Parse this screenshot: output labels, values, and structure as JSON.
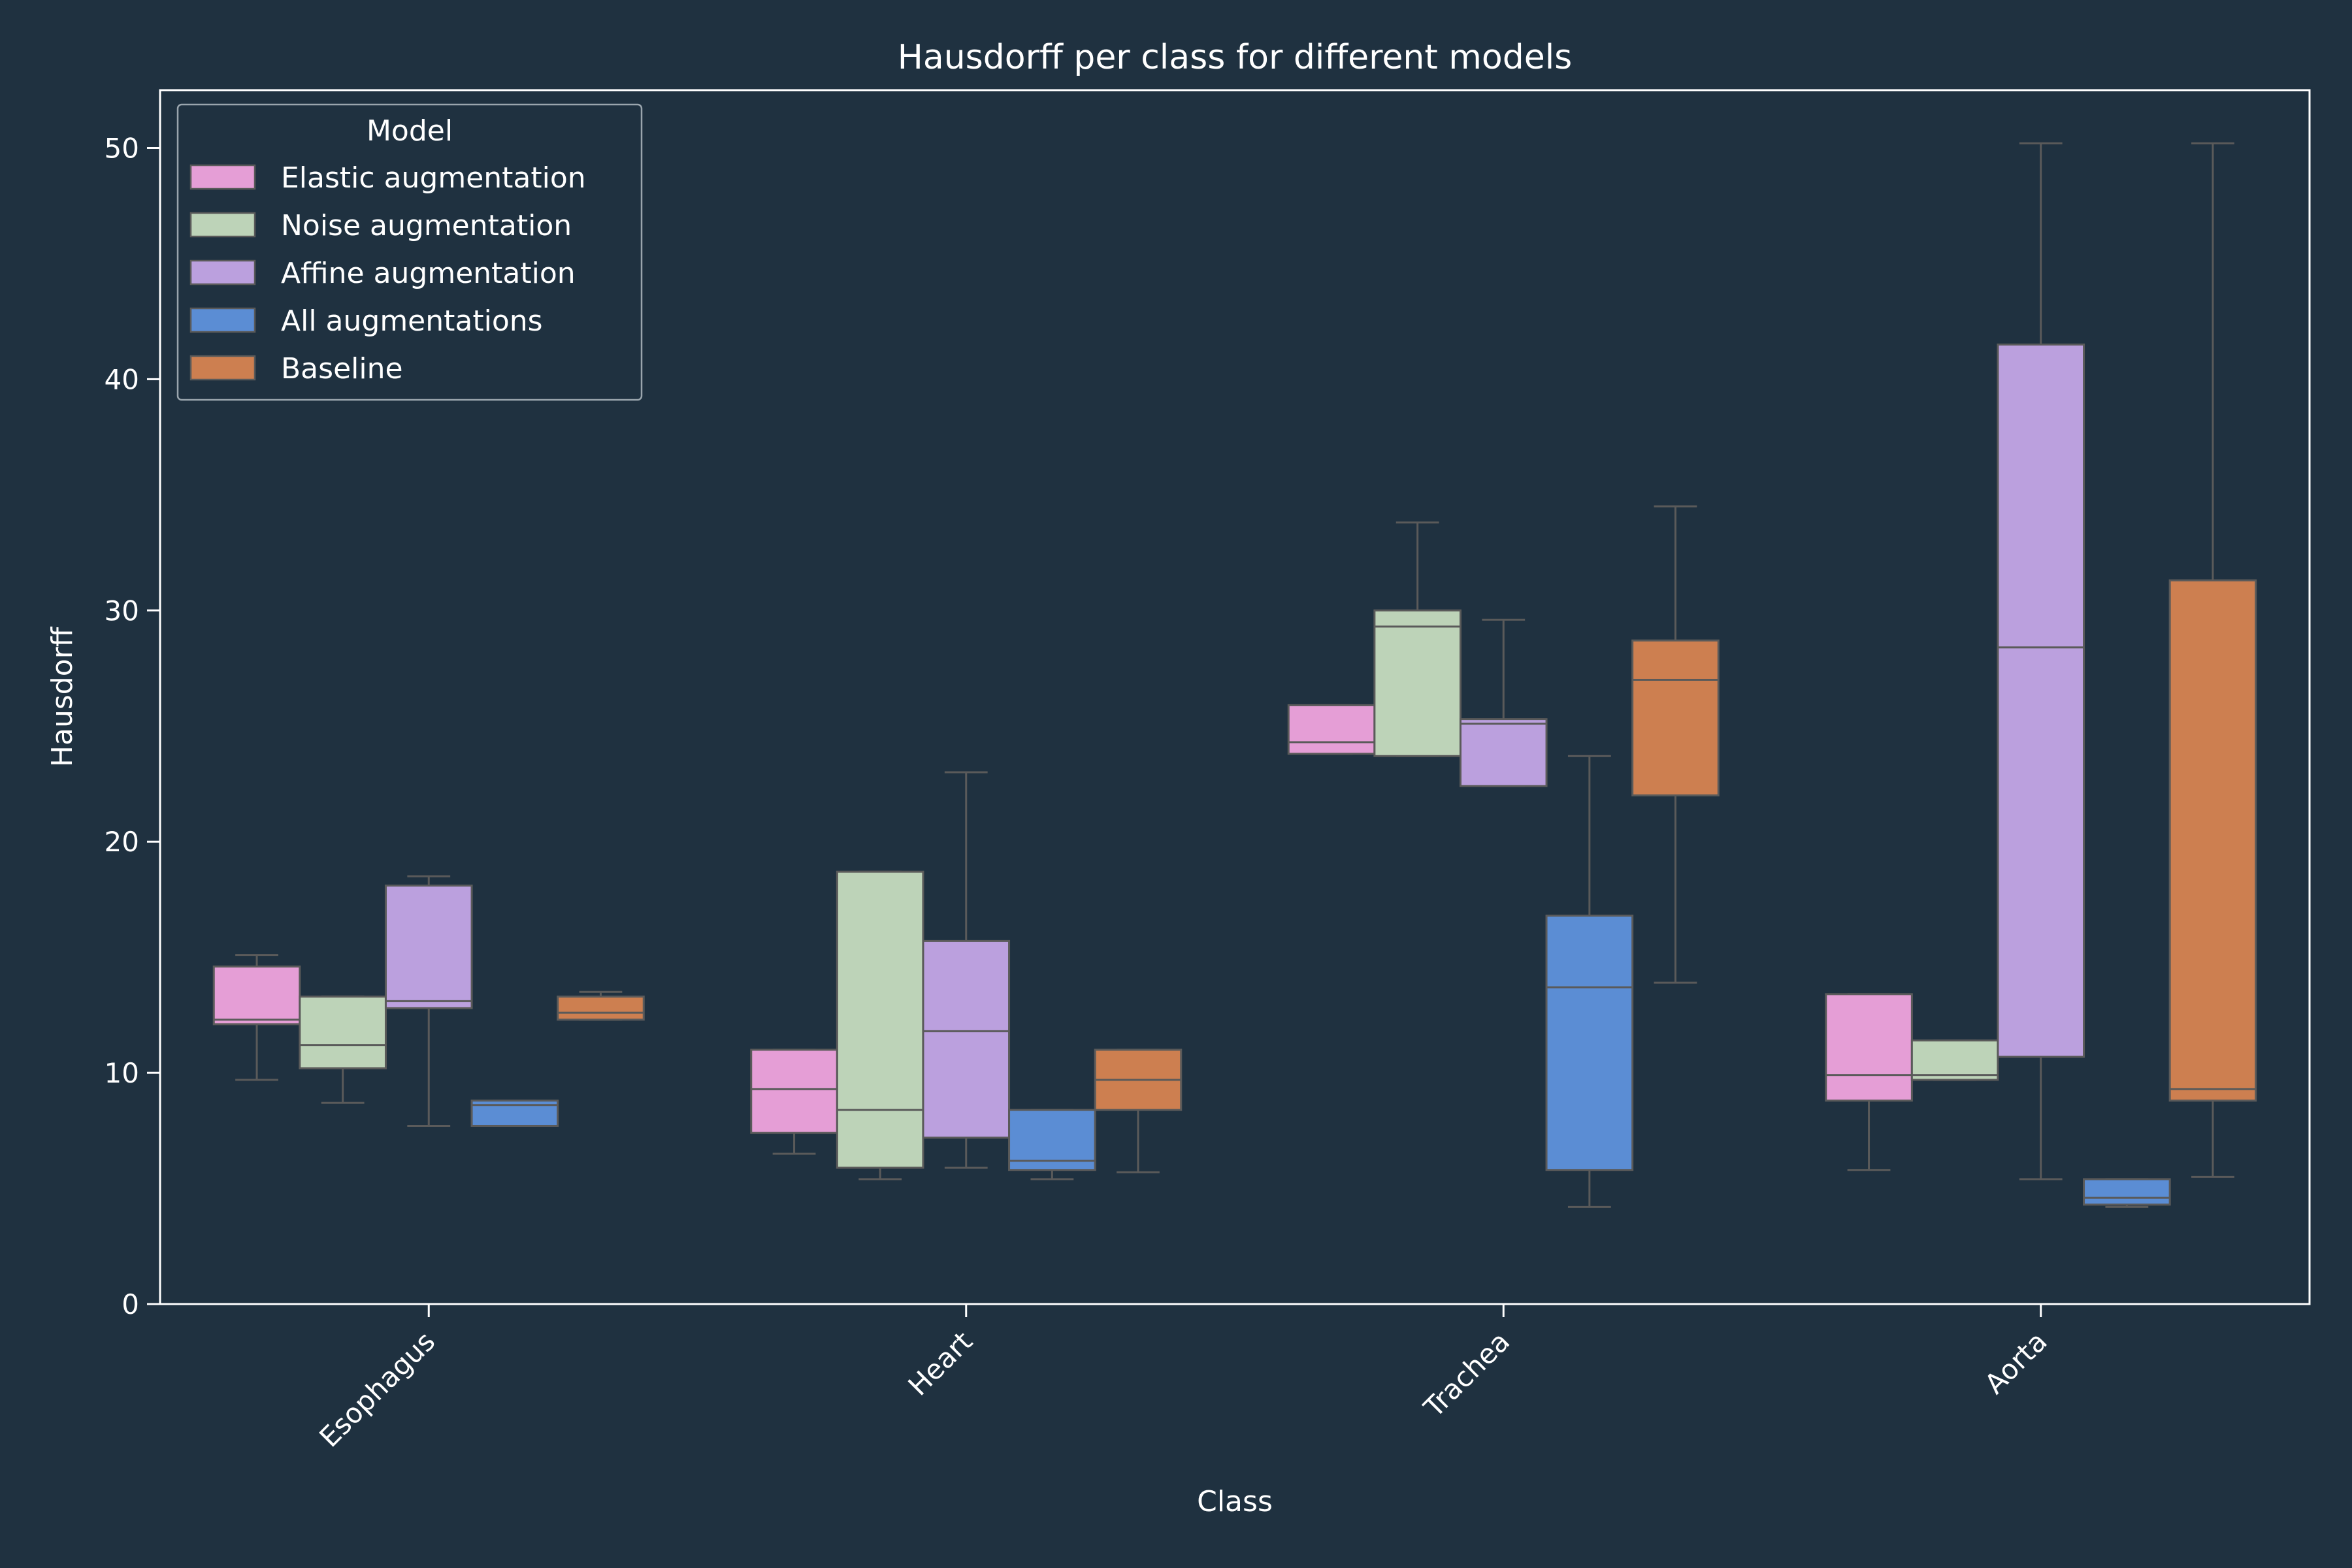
{
  "chart_data": {
    "type": "box",
    "title": "Hausdorff per class for different models",
    "xlabel": "Class",
    "ylabel": "Hausdorff",
    "ylim": [
      0,
      52.5
    ],
    "yticks": [
      0,
      10,
      20,
      30,
      40,
      50
    ],
    "categories": [
      "Esophagus",
      "Heart",
      "Trachea",
      "Aorta"
    ],
    "legend": {
      "title": "Model",
      "placement": "top-left"
    },
    "colors": {
      "background": "#1f3140",
      "axes": "#ffffff",
      "whisker": "#5a5a5a"
    },
    "series": [
      {
        "name": "Elastic augmentation",
        "color": "#e59ed6",
        "boxes": [
          {
            "whislo": 9.7,
            "q1": 12.1,
            "med": 12.3,
            "q3": 14.6,
            "whishi": 15.1
          },
          {
            "whislo": 6.5,
            "q1": 7.4,
            "med": 9.3,
            "q3": 11.0,
            "whishi": 11.0
          },
          {
            "whislo": 23.8,
            "q1": 23.8,
            "med": 24.3,
            "q3": 25.9,
            "whishi": 25.9
          },
          {
            "whislo": 5.8,
            "q1": 8.8,
            "med": 9.9,
            "q3": 13.4,
            "whishi": 13.4
          }
        ]
      },
      {
        "name": "Noise augmentation",
        "color": "#bdd3b8",
        "boxes": [
          {
            "whislo": 8.7,
            "q1": 10.2,
            "med": 11.2,
            "q3": 13.3,
            "whishi": 13.3
          },
          {
            "whislo": 5.4,
            "q1": 5.9,
            "med": 8.4,
            "q3": 18.7,
            "whishi": 18.7
          },
          {
            "whislo": 23.7,
            "q1": 23.7,
            "med": 29.3,
            "q3": 30.0,
            "whishi": 33.8
          },
          {
            "whislo": 9.7,
            "q1": 9.7,
            "med": 9.9,
            "q3": 11.4,
            "whishi": 11.4
          }
        ]
      },
      {
        "name": "Affine augmentation",
        "color": "#bba0de",
        "boxes": [
          {
            "whislo": 7.7,
            "q1": 12.8,
            "med": 13.1,
            "q3": 18.1,
            "whishi": 18.5
          },
          {
            "whislo": 5.9,
            "q1": 7.2,
            "med": 11.8,
            "q3": 15.7,
            "whishi": 23.0
          },
          {
            "whislo": 22.4,
            "q1": 22.4,
            "med": 25.1,
            "q3": 25.3,
            "whishi": 29.6
          },
          {
            "whislo": 5.4,
            "q1": 10.7,
            "med": 28.4,
            "q3": 41.5,
            "whishi": 50.2
          }
        ]
      },
      {
        "name": "All augmentations",
        "color": "#5b8dd4",
        "boxes": [
          {
            "whislo": 7.7,
            "q1": 7.7,
            "med": 8.6,
            "q3": 8.8,
            "whishi": 8.8
          },
          {
            "whislo": 5.4,
            "q1": 5.8,
            "med": 6.2,
            "q3": 8.4,
            "whishi": 8.4
          },
          {
            "whislo": 4.2,
            "q1": 5.8,
            "med": 13.7,
            "q3": 16.8,
            "whishi": 23.7
          },
          {
            "whislo": 4.2,
            "q1": 4.3,
            "med": 4.6,
            "q3": 5.4,
            "whishi": 5.4
          }
        ]
      },
      {
        "name": "Baseline",
        "color": "#cd7f50",
        "boxes": [
          {
            "whislo": 12.3,
            "q1": 12.3,
            "med": 12.6,
            "q3": 13.3,
            "whishi": 13.5
          },
          {
            "whislo": 5.7,
            "q1": 8.4,
            "med": 9.7,
            "q3": 11.0,
            "whishi": 11.0
          },
          {
            "whislo": 13.9,
            "q1": 22.0,
            "med": 27.0,
            "q3": 28.7,
            "whishi": 34.5
          },
          {
            "whislo": 5.5,
            "q1": 8.8,
            "med": 9.3,
            "q3": 31.3,
            "whishi": 50.2
          }
        ]
      }
    ]
  }
}
